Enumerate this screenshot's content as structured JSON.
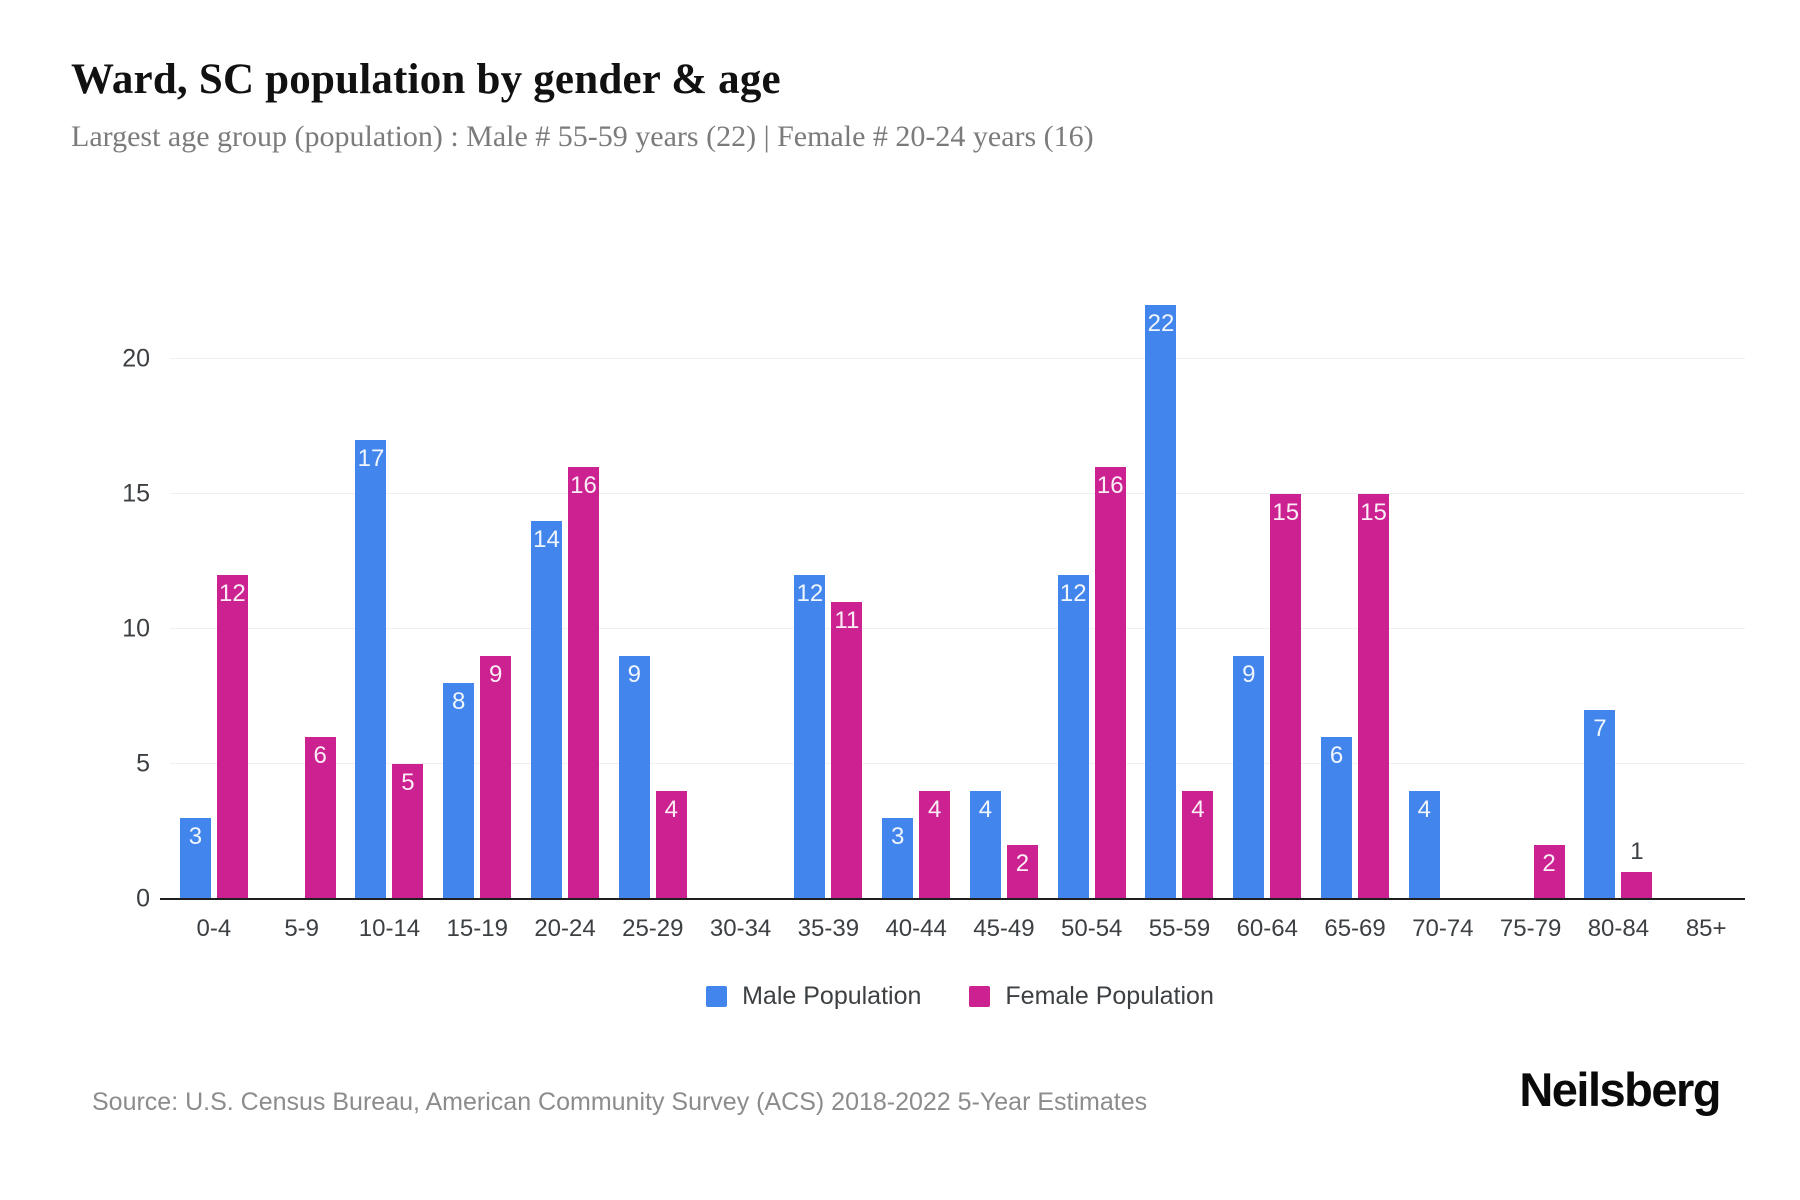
{
  "header": {
    "title": "Ward, SC population by gender & age",
    "subtitle": "Largest age group (population) : Male # 55-59 years (22) | Female # 20-24 years (16)"
  },
  "chart_data": {
    "type": "bar",
    "title": "Ward, SC population by gender & age",
    "subtitle": "Largest age group (population) : Male # 55-59 years (22) | Female # 20-24 years (16)",
    "categories": [
      "0-4",
      "5-9",
      "10-14",
      "15-19",
      "20-24",
      "25-29",
      "30-34",
      "35-39",
      "40-44",
      "45-49",
      "50-54",
      "55-59",
      "60-64",
      "65-69",
      "70-74",
      "75-79",
      "80-84",
      "85+"
    ],
    "series": [
      {
        "name": "Male Population",
        "color": "#4285EC",
        "values": [
          3,
          0,
          17,
          8,
          14,
          9,
          0,
          12,
          3,
          4,
          12,
          22,
          9,
          6,
          4,
          0,
          7,
          0
        ]
      },
      {
        "name": "Female Population",
        "color": "#CC2190",
        "values": [
          12,
          6,
          5,
          9,
          16,
          4,
          0,
          11,
          4,
          2,
          16,
          4,
          15,
          15,
          0,
          2,
          1,
          0
        ]
      }
    ],
    "xlabel": "",
    "ylabel": "",
    "ylim": [
      0,
      22
    ],
    "yticks": [
      0,
      5,
      10,
      15,
      20
    ],
    "grid": "horizontal-only",
    "legend_position": "bottom",
    "bar_label_color_inside": "#ffffff",
    "bar_label_color_outside": "#3c4043"
  },
  "footer": {
    "source": "Source: U.S. Census Bureau, American Community Survey (ACS) 2018-2022 5-Year Estimates",
    "brand": "Neilsberg"
  }
}
